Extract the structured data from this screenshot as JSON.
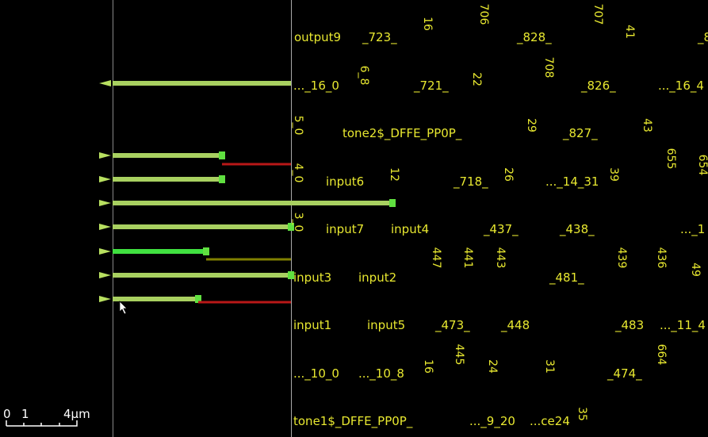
{
  "layout_labels": [
    "output9",
    "_723_",
    "_828_",
    "_8",
    "..._16_0",
    "_721_",
    "_826_",
    "..._16_4",
    "tone2$_DFFE_PP0P_",
    "_827_",
    "input6",
    "_718_",
    "..._14_31",
    "input7",
    "input4",
    "_437_",
    "_438_",
    "..._1",
    "input3",
    "input2",
    "_481_",
    "input1",
    "input5",
    "_473_",
    "_448",
    "_483",
    "..._11_4",
    "..._10_0",
    "..._10_8",
    "_474_",
    "tone1$_DFFE_PP0P_",
    "..._9_20",
    "...ce24"
  ],
  "vertical_labels": [
    "16",
    "706",
    "707",
    "41",
    "6_8",
    "708",
    "22",
    "5_0",
    "29",
    "43",
    "655",
    "654",
    "4_0",
    "12",
    "26",
    "39",
    "3_0",
    "447",
    "441",
    "443",
    "439",
    "436",
    "49",
    "445",
    "16",
    "24",
    "31",
    "664",
    "35"
  ],
  "scale_bar": {
    "labels": [
      "0",
      "1",
      "4μm"
    ]
  }
}
